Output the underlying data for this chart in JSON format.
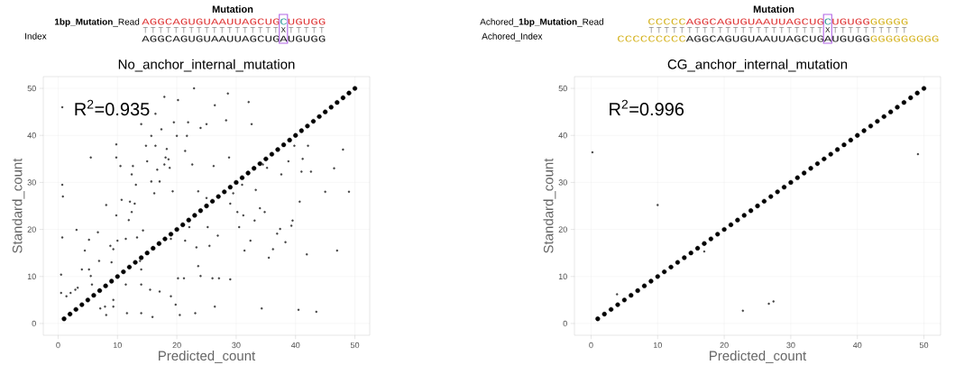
{
  "chart_data": [
    {
      "type": "scatter",
      "title": "No_anchor_internal_mutation",
      "xlabel": "Predicted_count",
      "ylabel": "Standard_count",
      "annotations": [
        "R$^{2}$=0.935",
        "Mutation",
        "**1bp_Mutation**_Read",
        "AGGCAGUGUAAUUAGCUG",
        "C",
        "UGUGG",
        "X",
        "Index",
        "AGGCAGUGUAAUUAGCUG",
        "A",
        "UGUGG"
      ],
      "xlim": [
        -2.5,
        52.5
      ],
      "ylim": [
        -2.5,
        52.5
      ],
      "xticks": [
        0,
        10,
        20,
        30,
        40,
        50
      ],
      "yticks": [
        0,
        10,
        20,
        30,
        40,
        50
      ],
      "grid": true,
      "series": [
        {
          "color": "#000000",
          "x": [
            1,
            2,
            3,
            4,
            5,
            6,
            7,
            8,
            9,
            10,
            11,
            12,
            13,
            14,
            15,
            16,
            17,
            18,
            19,
            20,
            21,
            22,
            23,
            24,
            25,
            26,
            27,
            28,
            29,
            30,
            31,
            32,
            33,
            34,
            35,
            36,
            37,
            38,
            39,
            40,
            41,
            42,
            43,
            44,
            45,
            46,
            47,
            48,
            49,
            50
          ],
          "values": [
            1,
            2,
            3,
            4,
            5,
            6,
            7,
            8,
            9,
            10,
            11,
            12,
            13,
            14,
            15,
            16,
            17,
            18,
            19,
            20,
            21,
            22,
            23,
            24,
            25,
            26,
            27,
            28,
            29,
            30,
            31,
            32,
            33,
            34,
            35,
            36,
            37,
            38,
            39,
            40,
            41,
            42,
            43,
            44,
            45,
            46,
            47,
            48,
            49,
            50
          ]
        },
        {
          "color": "#404040",
          "x": [
            0.7,
            0.7,
            0.8,
            0.7,
            0.5,
            0.5,
            1.4,
            2.1,
            2.9,
            3.3,
            3.1,
            4.5,
            5.2,
            5.5,
            4.0,
            5.2,
            5.5,
            5.7,
            6.9,
            6.7,
            7.1,
            7.9,
            8.1,
            8.1,
            8.8,
            9.3,
            9.0,
            9.3,
            9.3,
            9.8,
            9.8,
            9.8,
            10,
            10.5,
            10.7,
            11.4,
            11.4,
            11.6,
            11.9,
            12.1,
            12.4,
            12.6,
            12.4,
            12.9,
            13.1,
            13.3,
            13.8,
            14.0,
            14.0,
            14.0,
            14.0,
            14.3,
            14.8,
            15.0,
            15.5,
            15.7,
            15.7,
            15.9,
            16.2,
            16.4,
            16.4,
            16.7,
            17.1,
            17.1,
            17.4,
            17.9,
            18.1,
            18.3,
            17.9,
            18.8,
            18.6,
            19.0,
            19.3,
            19.0,
            19.5,
            19.8,
            20.0,
            20.2,
            20.2,
            20.5,
            21.2,
            21.4,
            21.4,
            21.7,
            21.9,
            22.1,
            22.6,
            22.9,
            23.1,
            23.3,
            23.6,
            23.6,
            24.0,
            24.0,
            25.0,
            25.0,
            25.2,
            25.5,
            26.0,
            26.2,
            26.4,
            26.4,
            26.9,
            27.1,
            28.6,
            28.3,
            28.8,
            29.0,
            29.0,
            29.5,
            30.2,
            30.5,
            31.0,
            31.2,
            31.4,
            32.1,
            32.6,
            32.4,
            33.1,
            33.3,
            34.0,
            34.3,
            34.5,
            34.8,
            35.2,
            35.5,
            36.2,
            36.9,
            37.4,
            37.6,
            38.3,
            38.8,
            39.3,
            39.5,
            39.8,
            40.5,
            40.7,
            41.0,
            41.2,
            41.9,
            42.1,
            42.6,
            43.5,
            45,
            46.5,
            47,
            48,
            49
          ],
          "values": [
            46.0,
            29.5,
            27,
            18.3,
            10.4,
            6.5,
            5.8,
            6.5,
            7.2,
            7.6,
            19.9,
            15.5,
            17.8,
            35.3,
            11.5,
            11.5,
            10.1,
            8.3,
            13.3,
            19.4,
            3.2,
            3.6,
            1.8,
            25.2,
            16.5,
            15.8,
            13.0,
            5.0,
            3.6,
            38.1,
            35.3,
            23.0,
            17.6,
            33.5,
            26.3,
            18.0,
            8.3,
            2.2,
            22.0,
            25.9,
            31.7,
            33.5,
            23.7,
            25.5,
            29.5,
            18.3,
            13.3,
            42.4,
            11.5,
            8.3,
            2.2,
            19.8,
            37.8,
            34.5,
            7.2,
            39.9,
            30.2,
            1.4,
            27.7,
            44.6,
            37.8,
            32.7,
            30.2,
            6.8,
            41.3,
            48.2,
            35.3,
            37.1,
            33.8,
            33.1,
            34.9,
            18.0,
            28.1,
            5.8,
            42.8,
            4.0,
            39.9,
            47.5,
            9.6,
            1.8,
            9.6,
            36.7,
            17.6,
            39.9,
            42.8,
            20.5,
            33.8,
            50.0,
            2.2,
            16.2,
            12.2,
            28.1,
            41.6,
            10.1,
            42.4,
            26.7,
            20.5,
            16.5,
            9.6,
            33.5,
            3.6,
            46.4,
            18.7,
            9.6,
            48.9,
            43.2,
            35.3,
            25.5,
            9.4,
            27.7,
            23.7,
            20.5,
            29.5,
            23.0,
            15.5,
            47.1,
            42.4,
            17.6,
            21.9,
            28.4,
            24.5,
            3.2,
            33.8,
            23.7,
            33.1,
            14.0,
            15.8,
            19.1,
            20.1,
            31.7,
            17.3,
            34.5,
            20.8,
            21.9,
            37.8,
            2.9,
            25.9,
            32.3,
            35.0,
            14.7,
            37.8,
            32.3,
            2.5,
            28,
            33,
            15.5,
            37,
            28
          ]
        }
      ]
    },
    {
      "type": "scatter",
      "title": "CG_anchor_internal_mutation",
      "xlabel": "Predicted_count",
      "ylabel": "Standard_count",
      "annotations": [
        "R$^{2}$=0.996",
        "Mutation",
        "Achored_**1bp_Mutation**_Read",
        "CCCCC",
        "AGGCAGUGUAAUUAGCUG",
        "C",
        "UGUGG",
        "GGGGG",
        "X",
        "Achored_Index",
        "CCCCCCCCC",
        "AGGCAGUGUAAUUAGCUG",
        "A",
        "UGUGG",
        "GGGGGGGGG"
      ],
      "xlim": [
        -2.5,
        52.5
      ],
      "ylim": [
        -2.5,
        52.5
      ],
      "xticks": [
        0,
        10,
        20,
        30,
        40,
        50
      ],
      "yticks": [
        0,
        10,
        20,
        30,
        40,
        50
      ],
      "grid": true,
      "series": [
        {
          "color": "#000000",
          "x": [
            1,
            2,
            3,
            4,
            5,
            6,
            7,
            8,
            9,
            10,
            11,
            12,
            13,
            14,
            15,
            16,
            17,
            18,
            19,
            20,
            21,
            22,
            23,
            24,
            25,
            26,
            27,
            28,
            29,
            30,
            31,
            32,
            33,
            34,
            35,
            36,
            37,
            38,
            39,
            40,
            41,
            42,
            43,
            44,
            45,
            46,
            47,
            48,
            49,
            50
          ],
          "values": [
            1,
            2,
            3,
            4,
            5,
            6,
            7,
            8,
            9,
            10,
            11,
            12,
            13,
            14,
            15,
            16,
            17,
            18,
            19,
            20,
            21,
            22,
            23,
            24,
            25,
            26,
            27,
            28,
            29,
            30,
            31,
            32,
            33,
            34,
            35,
            36,
            37,
            38,
            39,
            40,
            41,
            42,
            43,
            44,
            45,
            46,
            47,
            48,
            49,
            50
          ]
        },
        {
          "color": "#404040",
          "x": [
            0.2,
            10.0,
            3.9,
            17.0,
            22.8,
            26.7,
            27.4,
            49.1
          ],
          "values": [
            36.4,
            25.2,
            6.2,
            15.3,
            2.7,
            4.2,
            4.7,
            36.0
          ]
        }
      ]
    }
  ]
}
